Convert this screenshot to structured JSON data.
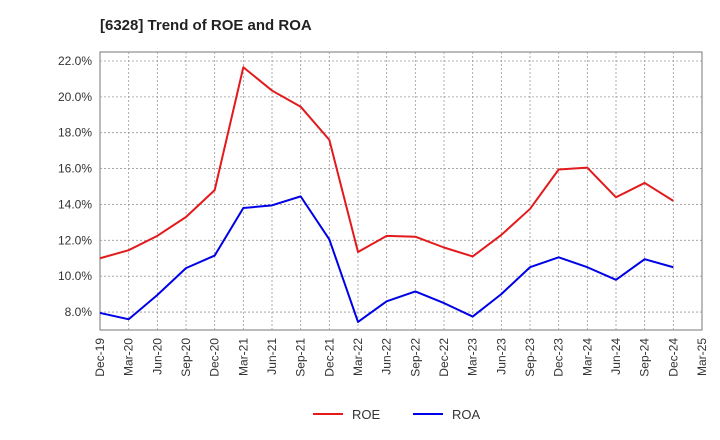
{
  "chart_data": {
    "type": "line",
    "title": "[6328]  Trend of ROE and ROA",
    "xlabel": "",
    "ylabel": "",
    "x": [
      "Dec-19",
      "Mar-20",
      "Jun-20",
      "Sep-20",
      "Dec-20",
      "Mar-21",
      "Jun-21",
      "Sep-21",
      "Dec-21",
      "Mar-22",
      "Jun-22",
      "Sep-22",
      "Dec-22",
      "Mar-23",
      "Jun-23",
      "Sep-23",
      "Dec-23",
      "Mar-24",
      "Jun-24",
      "Sep-24",
      "Dec-24"
    ],
    "x_ticks": [
      "Dec-19",
      "Mar-20",
      "Jun-20",
      "Sep-20",
      "Dec-20",
      "Mar-21",
      "Jun-21",
      "Sep-21",
      "Dec-21",
      "Mar-22",
      "Jun-22",
      "Sep-22",
      "Dec-22",
      "Mar-23",
      "Jun-23",
      "Sep-23",
      "Dec-23",
      "Mar-24",
      "Jun-24",
      "Sep-24",
      "Dec-24",
      "Mar-25"
    ],
    "y_ticks": [
      "8.0%",
      "10.0%",
      "12.0%",
      "14.0%",
      "16.0%",
      "18.0%",
      "20.0%",
      "22.0%"
    ],
    "ylim": [
      7.0,
      22.5
    ],
    "grid": true,
    "legend_position": "bottom-center",
    "series": [
      {
        "name": "ROE",
        "color": "#e31a1c",
        "values": [
          11.0,
          11.45,
          12.25,
          13.3,
          14.8,
          21.65,
          20.35,
          19.45,
          17.6,
          11.35,
          12.25,
          12.2,
          11.6,
          11.1,
          12.3,
          13.75,
          15.95,
          16.05,
          14.4,
          15.2,
          14.2
        ]
      },
      {
        "name": "ROA",
        "color": "#0000e6",
        "values": [
          7.95,
          7.6,
          8.95,
          10.45,
          11.15,
          13.8,
          13.95,
          14.45,
          12.05,
          7.45,
          8.6,
          9.15,
          8.5,
          7.75,
          9.0,
          10.5,
          11.05,
          10.5,
          9.8,
          10.95,
          10.5
        ]
      }
    ]
  }
}
